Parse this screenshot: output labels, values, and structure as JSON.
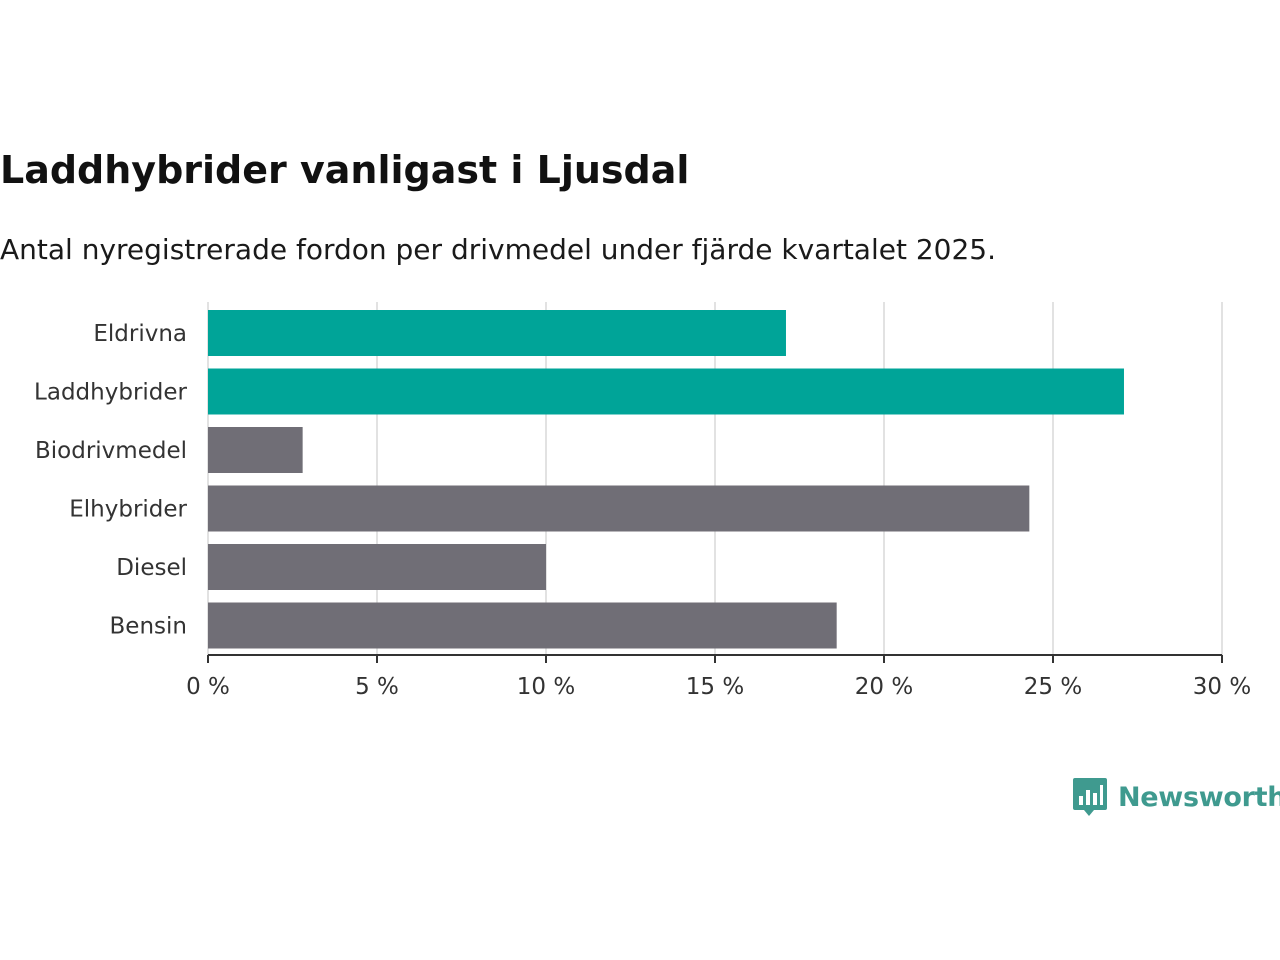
{
  "title": "Laddhybrider vanligast i Ljusdal",
  "subtitle": "Antal nyregistrerade fordon per drivmedel under fjärde kvartalet 2025.",
  "brand": {
    "name": "Newsworthy",
    "color": "#3f9a8f"
  },
  "colors": {
    "highlight": "#00a498",
    "default": "#706e76"
  },
  "chart_data": {
    "type": "bar",
    "orientation": "horizontal",
    "categories": [
      "Eldrivna",
      "Laddhybrider",
      "Biodrivmedel",
      "Elhybrider",
      "Diesel",
      "Bensin"
    ],
    "values": [
      17.1,
      27.1,
      2.8,
      24.3,
      10.0,
      18.6
    ],
    "highlighted": [
      true,
      true,
      false,
      false,
      false,
      false
    ],
    "xlim": [
      0,
      30
    ],
    "xticks": [
      0,
      5,
      10,
      15,
      20,
      25,
      30
    ],
    "xtick_labels": [
      "0 %",
      "5 %",
      "10 %",
      "15 %",
      "20 %",
      "25 %",
      "30 %"
    ],
    "unit": "%",
    "grid": true,
    "xlabel": "",
    "ylabel": ""
  }
}
